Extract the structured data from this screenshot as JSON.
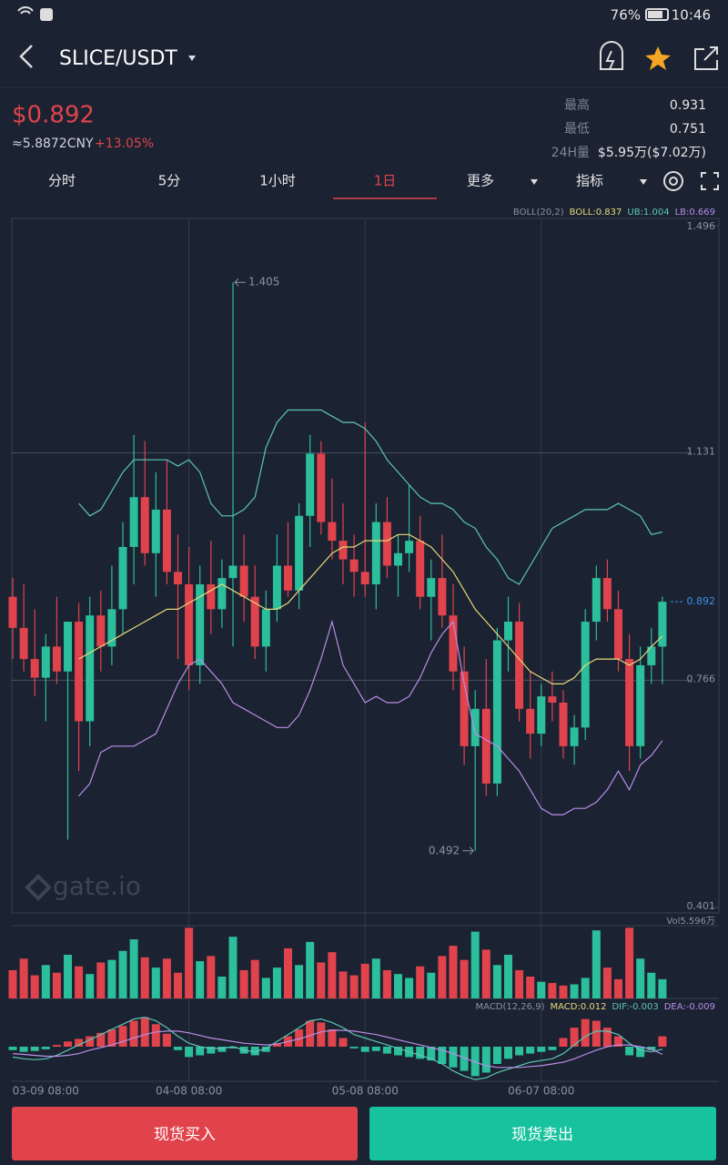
{
  "status_bar": {
    "battery": "76%",
    "time": "10:46"
  },
  "header": {
    "pair": "SLICE/USDT"
  },
  "ticker": {
    "price": "$0.892",
    "cny": "≈5.8872CNY",
    "change": "+13.05%",
    "stats": [
      {
        "label": "最高",
        "value": "0.931"
      },
      {
        "label": "最低",
        "value": "0.751"
      },
      {
        "label": "24H量",
        "value": "$5.95万($7.02万)"
      }
    ]
  },
  "tabs": [
    "分时",
    "5分",
    "1小时",
    "1日",
    "更多",
    "指标"
  ],
  "active_tab": "1日",
  "chart_data": {
    "type": "candlestick",
    "watermark": "gate.io",
    "up_color": "#2bbf9b",
    "down_color": "#e0434b",
    "boll_title": "BOLL(20,2)",
    "categories": [
      null,
      null,
      null,
      "03-09 08:00",
      null,
      null,
      null,
      null,
      null,
      null,
      null,
      null,
      null,
      null,
      null,
      null,
      "04-08 08:00",
      null,
      null,
      null,
      null,
      null,
      null,
      null,
      null,
      null,
      null,
      null,
      null,
      null,
      null,
      null,
      "05-08 08:00",
      null,
      null,
      null,
      null,
      null,
      null,
      null,
      null,
      null,
      null,
      null,
      null,
      null,
      null,
      null,
      "06-07 08:00",
      null,
      null,
      null,
      null,
      null,
      null,
      null,
      null,
      null,
      null,
      null
    ],
    "candles": [
      [
        0.9,
        0.93,
        0.8,
        0.85
      ],
      [
        0.85,
        0.92,
        0.78,
        0.8
      ],
      [
        0.8,
        0.88,
        0.74,
        0.77
      ],
      [
        0.77,
        0.84,
        0.7,
        0.82
      ],
      [
        0.82,
        0.9,
        0.76,
        0.78
      ],
      [
        0.78,
        0.86,
        0.51,
        0.86
      ],
      [
        0.86,
        0.89,
        0.62,
        0.7
      ],
      [
        0.7,
        0.9,
        0.66,
        0.87
      ],
      [
        0.87,
        0.91,
        0.78,
        0.82
      ],
      [
        0.82,
        0.95,
        0.79,
        0.88
      ],
      [
        0.88,
        1.02,
        0.84,
        0.98
      ],
      [
        0.98,
        1.16,
        0.92,
        1.06
      ],
      [
        1.06,
        1.15,
        0.95,
        0.97
      ],
      [
        0.97,
        1.1,
        0.9,
        1.04
      ],
      [
        1.04,
        1.12,
        0.92,
        0.94
      ],
      [
        0.94,
        1.0,
        0.8,
        0.92
      ],
      [
        0.92,
        0.98,
        0.75,
        0.79
      ],
      [
        0.79,
        0.95,
        0.76,
        0.92
      ],
      [
        0.92,
        0.99,
        0.84,
        0.88
      ],
      [
        0.88,
        0.96,
        0.85,
        0.93
      ],
      [
        0.93,
        1.405,
        0.82,
        0.95
      ],
      [
        0.95,
        1.0,
        0.86,
        0.9
      ],
      [
        0.9,
        0.95,
        0.8,
        0.82
      ],
      [
        0.82,
        0.91,
        0.78,
        0.88
      ],
      [
        0.88,
        1.0,
        0.86,
        0.95
      ],
      [
        0.95,
        1.02,
        0.9,
        0.91
      ],
      [
        0.91,
        1.05,
        0.88,
        1.03
      ],
      [
        1.03,
        1.16,
        0.98,
        1.13
      ],
      [
        1.13,
        1.15,
        1.0,
        1.02
      ],
      [
        1.02,
        1.09,
        0.96,
        0.99
      ],
      [
        0.99,
        1.05,
        0.92,
        0.96
      ],
      [
        0.96,
        1.0,
        0.9,
        0.94
      ],
      [
        0.94,
        1.18,
        0.9,
        0.92
      ],
      [
        0.92,
        1.05,
        0.88,
        1.02
      ],
      [
        1.02,
        1.06,
        0.93,
        0.95
      ],
      [
        0.95,
        1.0,
        0.9,
        0.97
      ],
      [
        0.97,
        1.08,
        0.94,
        0.99
      ],
      [
        0.99,
        1.03,
        0.88,
        0.9
      ],
      [
        0.9,
        0.96,
        0.83,
        0.93
      ],
      [
        0.93,
        1.0,
        0.85,
        0.87
      ],
      [
        0.87,
        0.92,
        0.75,
        0.78
      ],
      [
        0.78,
        0.82,
        0.63,
        0.66
      ],
      [
        0.66,
        0.75,
        0.492,
        0.72
      ],
      [
        0.72,
        0.8,
        0.58,
        0.6
      ],
      [
        0.6,
        0.85,
        0.58,
        0.83
      ],
      [
        0.83,
        0.9,
        0.78,
        0.86
      ],
      [
        0.86,
        0.89,
        0.7,
        0.72
      ],
      [
        0.72,
        0.78,
        0.64,
        0.68
      ],
      [
        0.68,
        0.76,
        0.66,
        0.74
      ],
      [
        0.74,
        0.78,
        0.7,
        0.73
      ],
      [
        0.73,
        0.75,
        0.64,
        0.66
      ],
      [
        0.66,
        0.71,
        0.63,
        0.69
      ],
      [
        0.69,
        0.88,
        0.67,
        0.86
      ],
      [
        0.86,
        0.95,
        0.83,
        0.93
      ],
      [
        0.93,
        0.96,
        0.86,
        0.88
      ],
      [
        0.88,
        0.91,
        0.78,
        0.8
      ],
      [
        0.8,
        0.84,
        0.62,
        0.66
      ],
      [
        0.66,
        0.82,
        0.64,
        0.79
      ],
      [
        0.79,
        0.85,
        0.76,
        0.82
      ],
      [
        0.82,
        0.9,
        0.76,
        0.892
      ]
    ],
    "ylim": [
      0.401,
      1.496
    ],
    "yticks": [
      1.496,
      1.131,
      0.766,
      0.401
    ],
    "last_price": 0.892,
    "high_marker": 1.405,
    "low_marker": 0.492,
    "series": [
      {
        "name": "BOLL:0.837",
        "color": "#e6d97a",
        "values": [
          null,
          null,
          null,
          null,
          null,
          null,
          0.8,
          0.81,
          0.82,
          0.83,
          0.84,
          0.85,
          0.86,
          0.87,
          0.88,
          0.88,
          0.89,
          0.9,
          0.91,
          0.92,
          0.91,
          0.9,
          0.89,
          0.88,
          0.88,
          0.89,
          0.91,
          0.93,
          0.95,
          0.97,
          0.98,
          0.98,
          0.99,
          0.99,
          0.99,
          1.0,
          1.0,
          0.99,
          0.98,
          0.96,
          0.94,
          0.91,
          0.88,
          0.86,
          0.84,
          0.82,
          0.8,
          0.78,
          0.77,
          0.76,
          0.76,
          0.77,
          0.79,
          0.8,
          0.8,
          0.8,
          0.79,
          0.8,
          0.82,
          0.837
        ]
      },
      {
        "name": "UB:1.004",
        "color": "#5cc6b4",
        "values": [
          null,
          null,
          null,
          null,
          null,
          null,
          1.05,
          1.03,
          1.04,
          1.07,
          1.1,
          1.12,
          1.12,
          1.12,
          1.12,
          1.11,
          1.12,
          1.1,
          1.05,
          1.03,
          1.03,
          1.04,
          1.06,
          1.14,
          1.18,
          1.2,
          1.2,
          1.2,
          1.2,
          1.19,
          1.18,
          1.18,
          1.17,
          1.15,
          1.12,
          1.1,
          1.08,
          1.06,
          1.05,
          1.05,
          1.04,
          1.02,
          1.01,
          0.98,
          0.96,
          0.93,
          0.92,
          0.95,
          0.98,
          1.01,
          1.02,
          1.03,
          1.04,
          1.04,
          1.04,
          1.05,
          1.04,
          1.03,
          1.0,
          1.004
        ]
      },
      {
        "name": "LB:0.669",
        "color": "#b98ee6",
        "values": [
          null,
          null,
          null,
          null,
          null,
          null,
          0.58,
          0.6,
          0.65,
          0.66,
          0.66,
          0.66,
          0.67,
          0.68,
          0.72,
          0.76,
          0.79,
          0.8,
          0.78,
          0.76,
          0.73,
          0.72,
          0.71,
          0.7,
          0.69,
          0.69,
          0.71,
          0.75,
          0.8,
          0.86,
          0.79,
          0.76,
          0.73,
          0.74,
          0.73,
          0.73,
          0.74,
          0.77,
          0.81,
          0.84,
          0.86,
          0.76,
          0.68,
          0.67,
          0.66,
          0.64,
          0.62,
          0.59,
          0.56,
          0.55,
          0.55,
          0.56,
          0.56,
          0.57,
          0.59,
          0.62,
          0.59,
          0.63,
          0.645,
          0.669
        ]
      }
    ],
    "volume": {
      "max": {
        "value": 5.596,
        "label": "Vol5.596万"
      },
      "values": [
        2.2,
        3.1,
        1.8,
        2.6,
        2.0,
        3.4,
        2.5,
        1.9,
        2.8,
        3.0,
        3.7,
        4.6,
        3.2,
        2.4,
        3.1,
        2.0,
        5.5,
        2.9,
        3.3,
        1.7,
        4.8,
        2.2,
        3.0,
        1.6,
        2.4,
        3.9,
        2.6,
        4.4,
        2.8,
        3.6,
        2.1,
        1.8,
        2.7,
        3.1,
        2.2,
        1.9,
        1.6,
        2.5,
        2.0,
        3.3,
        4.1,
        3.0,
        5.2,
        3.8,
        2.6,
        3.4,
        2.2,
        1.7,
        1.3,
        1.2,
        1.0,
        1.1,
        1.6,
        5.3,
        2.4,
        1.5,
        5.5,
        3.1,
        2.0,
        1.5
      ]
    },
    "macd": {
      "title": "MACD(12,26,9)",
      "ylim": [
        -0.04,
        0.04
      ],
      "hist": {
        "name": "MACD:0.012",
        "color": "#e6d97a",
        "values": [
          -0.004,
          -0.006,
          -0.005,
          -0.003,
          0.002,
          0.006,
          0.009,
          0.012,
          0.016,
          0.02,
          0.024,
          0.03,
          0.034,
          0.026,
          0.015,
          -0.004,
          -0.012,
          -0.01,
          -0.008,
          -0.006,
          -0.002,
          -0.008,
          -0.01,
          -0.006,
          0.004,
          0.012,
          0.02,
          0.03,
          0.028,
          0.02,
          0.01,
          -0.002,
          -0.006,
          -0.005,
          -0.008,
          -0.01,
          -0.012,
          -0.014,
          -0.016,
          -0.02,
          -0.024,
          -0.028,
          -0.034,
          -0.03,
          -0.02,
          -0.014,
          -0.01,
          -0.008,
          -0.006,
          -0.004,
          0.01,
          0.022,
          0.032,
          0.03,
          0.022,
          0.012,
          -0.01,
          -0.012,
          -0.004,
          0.012
        ]
      },
      "lines": [
        {
          "name": "DIF:-0.003",
          "color": "#5cc6b4",
          "values": [
            -0.012,
            -0.014,
            -0.015,
            -0.014,
            -0.01,
            -0.004,
            0.002,
            0.008,
            0.014,
            0.02,
            0.026,
            0.032,
            0.034,
            0.03,
            0.022,
            0.012,
            0.004,
            0.0,
            -0.002,
            -0.002,
            0.0,
            -0.004,
            -0.006,
            -0.002,
            0.006,
            0.014,
            0.022,
            0.03,
            0.032,
            0.028,
            0.022,
            0.014,
            0.01,
            0.006,
            0.002,
            -0.002,
            -0.006,
            -0.01,
            -0.014,
            -0.02,
            -0.028,
            -0.034,
            -0.038,
            -0.036,
            -0.03,
            -0.026,
            -0.022,
            -0.018,
            -0.016,
            -0.014,
            -0.008,
            0.002,
            0.012,
            0.018,
            0.018,
            0.014,
            0.004,
            -0.004,
            -0.006,
            -0.003
          ]
        },
        {
          "name": "DEA:-0.009",
          "color": "#b98ee6",
          "values": [
            -0.008,
            -0.009,
            -0.01,
            -0.011,
            -0.011,
            -0.01,
            -0.008,
            -0.004,
            -0.001,
            0.002,
            0.006,
            0.01,
            0.014,
            0.017,
            0.018,
            0.018,
            0.016,
            0.013,
            0.01,
            0.008,
            0.006,
            0.004,
            0.003,
            0.002,
            0.003,
            0.006,
            0.009,
            0.013,
            0.017,
            0.019,
            0.019,
            0.018,
            0.016,
            0.014,
            0.011,
            0.008,
            0.005,
            0.002,
            -0.001,
            -0.004,
            -0.008,
            -0.013,
            -0.018,
            -0.022,
            -0.024,
            -0.024,
            -0.024,
            -0.023,
            -0.022,
            -0.02,
            -0.018,
            -0.014,
            -0.009,
            -0.004,
            0.0,
            0.002,
            0.002,
            0.0,
            -0.003,
            -0.009
          ]
        }
      ]
    }
  },
  "buttons": {
    "buy": "现货买入",
    "sell": "现货卖出"
  }
}
